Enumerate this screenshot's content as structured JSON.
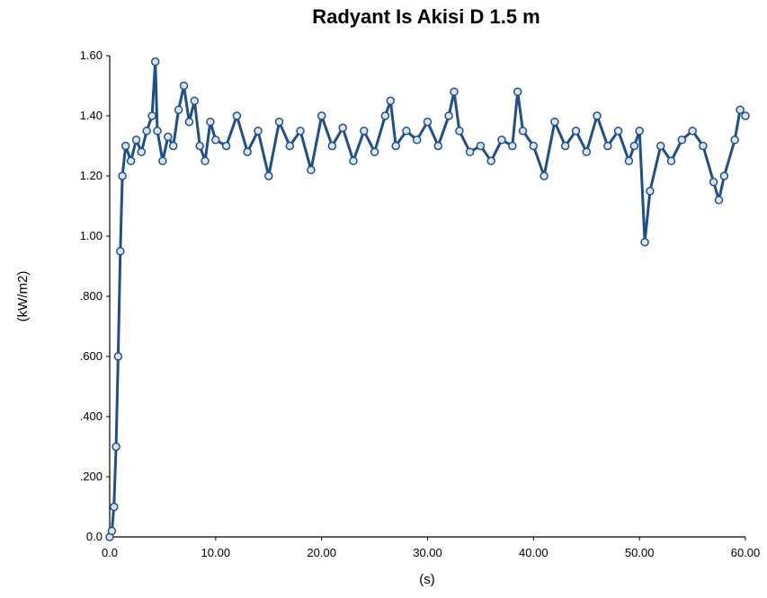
{
  "chart_data": {
    "type": "line",
    "title": "Radyant Is Akisi D 1.5 m",
    "xlabel": "(s)",
    "ylabel": "(kW/m2)",
    "xlim": [
      0,
      60
    ],
    "ylim": [
      0,
      1.6
    ],
    "x_ticks": [
      "0.0",
      "10.00",
      "20.00",
      "30.00",
      "40.00",
      "50.00",
      "60.00"
    ],
    "y_ticks": [
      "0.0",
      ".200",
      ".400",
      ".600",
      ".800",
      "1.00",
      "1.20",
      "1.40",
      "1.60"
    ],
    "grid": false,
    "legend": "none",
    "series": [
      {
        "marker": "circle",
        "color": "#1f4e8c",
        "x": [
          0,
          0.2,
          0.4,
          0.6,
          0.8,
          1.0,
          1.2,
          1.5,
          2.0,
          2.5,
          3.0,
          3.5,
          4.0,
          4.3,
          4.5,
          5.0,
          5.5,
          6.0,
          6.5,
          7.0,
          7.5,
          8.0,
          8.5,
          9.0,
          9.5,
          10.0,
          11.0,
          12.0,
          13.0,
          14.0,
          15.0,
          16.0,
          17.0,
          18.0,
          19.0,
          20.0,
          21.0,
          22.0,
          23.0,
          24.0,
          25.0,
          26.0,
          26.5,
          27.0,
          28.0,
          29.0,
          30.0,
          31.0,
          32.0,
          32.5,
          33.0,
          34.0,
          35.0,
          36.0,
          37.0,
          38.0,
          38.5,
          39.0,
          40.0,
          41.0,
          42.0,
          43.0,
          44.0,
          45.0,
          46.0,
          47.0,
          48.0,
          49.0,
          49.5,
          50.0,
          50.5,
          51.0,
          52.0,
          53.0,
          54.0,
          55.0,
          56.0,
          57.0,
          57.5,
          58.0,
          59.0,
          59.5,
          60.0
        ],
        "y": [
          0.0,
          0.02,
          0.1,
          0.3,
          0.6,
          0.95,
          1.2,
          1.3,
          1.25,
          1.32,
          1.28,
          1.35,
          1.4,
          1.58,
          1.35,
          1.25,
          1.33,
          1.3,
          1.42,
          1.5,
          1.38,
          1.45,
          1.3,
          1.25,
          1.38,
          1.32,
          1.3,
          1.4,
          1.28,
          1.35,
          1.2,
          1.38,
          1.3,
          1.35,
          1.22,
          1.4,
          1.3,
          1.36,
          1.25,
          1.35,
          1.28,
          1.4,
          1.45,
          1.3,
          1.35,
          1.32,
          1.38,
          1.3,
          1.4,
          1.48,
          1.35,
          1.28,
          1.3,
          1.25,
          1.32,
          1.3,
          1.48,
          1.35,
          1.3,
          1.2,
          1.38,
          1.3,
          1.35,
          1.28,
          1.4,
          1.3,
          1.35,
          1.25,
          1.3,
          1.35,
          0.98,
          1.15,
          1.3,
          1.25,
          1.32,
          1.35,
          1.3,
          1.18,
          1.12,
          1.2,
          1.32,
          1.42,
          1.4
        ]
      }
    ]
  }
}
